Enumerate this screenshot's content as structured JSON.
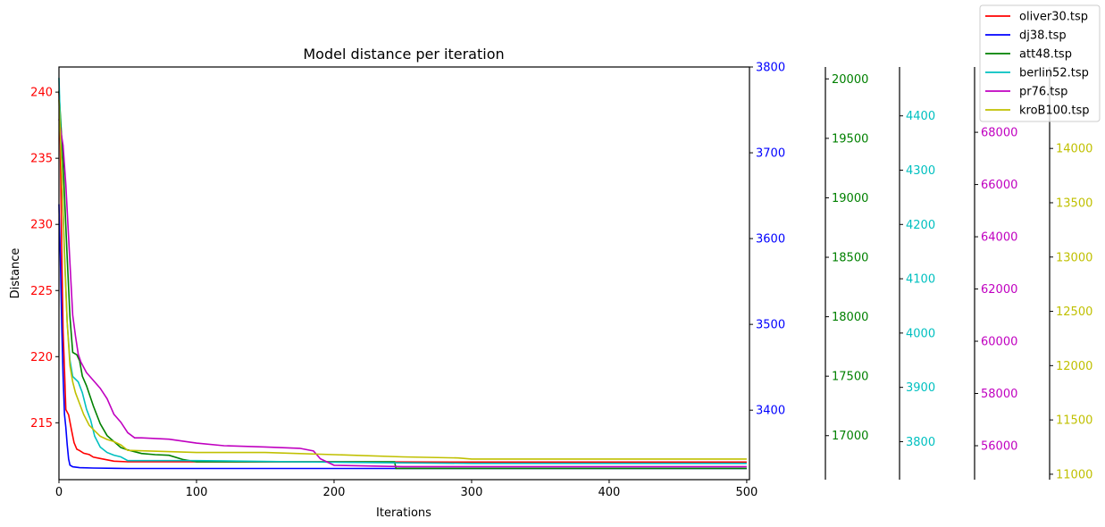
{
  "chart_data": {
    "type": "line",
    "title": "Model distance per iteration",
    "xlabel": "Iterations",
    "ylabel": "Distance",
    "xlim": [
      0,
      502
    ],
    "x_ticks": [
      0,
      100,
      200,
      300,
      400,
      500
    ],
    "legend_position": "top-right",
    "grid": false,
    "series": [
      {
        "name": "oliver30.tsp",
        "color": "#ff0000",
        "axis": {
          "ylim": [
            210.7,
            241.9
          ],
          "ticks": [
            215,
            220,
            225,
            230,
            235,
            240
          ],
          "side": "left"
        },
        "points": [
          [
            0,
            240
          ],
          [
            1,
            236
          ],
          [
            2,
            228
          ],
          [
            3,
            222
          ],
          [
            4,
            219
          ],
          [
            5,
            216
          ],
          [
            7,
            215.6
          ],
          [
            9,
            214.5
          ],
          [
            11,
            213.5
          ],
          [
            13,
            213
          ],
          [
            15,
            212.9
          ],
          [
            18,
            212.7
          ],
          [
            22,
            212.6
          ],
          [
            25,
            212.4
          ],
          [
            30,
            212.3
          ],
          [
            35,
            212.2
          ],
          [
            40,
            212.1
          ],
          [
            50,
            212.05
          ],
          [
            100,
            212.05
          ],
          [
            200,
            212.05
          ],
          [
            300,
            212.03
          ],
          [
            400,
            212.03
          ],
          [
            500,
            212.03
          ]
        ]
      },
      {
        "name": "dj38.tsp",
        "color": "#0000ff",
        "axis": {
          "ylim": [
            3319,
            3800
          ],
          "ticks": [
            3400,
            3500,
            3600,
            3700,
            3800
          ],
          "side": "right"
        },
        "points": [
          [
            0,
            3640
          ],
          [
            1,
            3580
          ],
          [
            2,
            3500
          ],
          [
            3,
            3440
          ],
          [
            4,
            3395
          ],
          [
            5,
            3380
          ],
          [
            6,
            3360
          ],
          [
            7,
            3343
          ],
          [
            8,
            3336
          ],
          [
            10,
            3334
          ],
          [
            15,
            3333
          ],
          [
            25,
            3332.5
          ],
          [
            50,
            3332
          ],
          [
            100,
            3332
          ],
          [
            200,
            3332
          ],
          [
            300,
            3332
          ],
          [
            400,
            3332
          ],
          [
            500,
            3332
          ]
        ]
      },
      {
        "name": "att48.tsp",
        "color": "#008000",
        "axis": {
          "ylim": [
            16630,
            20100
          ],
          "ticks": [
            17000,
            17500,
            18000,
            18500,
            19000,
            19500,
            20000
          ],
          "side": "right"
        },
        "points": [
          [
            0,
            19900
          ],
          [
            3,
            19300
          ],
          [
            6,
            18500
          ],
          [
            8,
            18000
          ],
          [
            10,
            17700
          ],
          [
            13,
            17680
          ],
          [
            15,
            17630
          ],
          [
            17,
            17500
          ],
          [
            20,
            17420
          ],
          [
            25,
            17250
          ],
          [
            30,
            17100
          ],
          [
            35,
            17000
          ],
          [
            40,
            16950
          ],
          [
            45,
            16900
          ],
          [
            50,
            16880
          ],
          [
            60,
            16850
          ],
          [
            70,
            16840
          ],
          [
            80,
            16835
          ],
          [
            90,
            16800
          ],
          [
            100,
            16780
          ],
          [
            150,
            16780
          ],
          [
            200,
            16780
          ],
          [
            244,
            16780
          ],
          [
            245,
            16725
          ],
          [
            300,
            16725
          ],
          [
            400,
            16725
          ],
          [
            500,
            16725
          ]
        ]
      },
      {
        "name": "berlin52.tsp",
        "color": "#00c0c0",
        "axis": {
          "ylim": [
            3730,
            4490
          ],
          "ticks": [
            3800,
            3900,
            4000,
            4100,
            4200,
            4300,
            4400
          ],
          "side": "right"
        },
        "points": [
          [
            0,
            4470
          ],
          [
            2,
            4300
          ],
          [
            4,
            4150
          ],
          [
            6,
            4020
          ],
          [
            8,
            3950
          ],
          [
            10,
            3920
          ],
          [
            14,
            3910
          ],
          [
            17,
            3890
          ],
          [
            20,
            3860
          ],
          [
            23,
            3840
          ],
          [
            26,
            3810
          ],
          [
            30,
            3790
          ],
          [
            35,
            3780
          ],
          [
            40,
            3775
          ],
          [
            45,
            3772
          ],
          [
            50,
            3765
          ],
          [
            100,
            3765
          ],
          [
            200,
            3762
          ],
          [
            300,
            3760
          ],
          [
            400,
            3760
          ],
          [
            500,
            3760
          ]
        ]
      },
      {
        "name": "pr76.tsp",
        "color": "#c000c0",
        "axis": {
          "ylim": [
            54700,
            70500
          ],
          "ticks": [
            56000,
            58000,
            60000,
            62000,
            64000,
            66000,
            68000
          ],
          "side": "right"
        },
        "points": [
          [
            0,
            68500
          ],
          [
            3,
            67500
          ],
          [
            5,
            66000
          ],
          [
            8,
            63000
          ],
          [
            10,
            61000
          ],
          [
            12,
            60200
          ],
          [
            14,
            59500
          ],
          [
            16,
            59200
          ],
          [
            20,
            58800
          ],
          [
            25,
            58500
          ],
          [
            30,
            58200
          ],
          [
            35,
            57800
          ],
          [
            40,
            57200
          ],
          [
            45,
            56900
          ],
          [
            50,
            56500
          ],
          [
            55,
            56300
          ],
          [
            60,
            56300
          ],
          [
            80,
            56250
          ],
          [
            100,
            56100
          ],
          [
            120,
            56000
          ],
          [
            150,
            55950
          ],
          [
            175,
            55900
          ],
          [
            185,
            55800
          ],
          [
            190,
            55500
          ],
          [
            200,
            55250
          ],
          [
            250,
            55200
          ],
          [
            300,
            55200
          ],
          [
            400,
            55200
          ],
          [
            500,
            55200
          ]
        ]
      },
      {
        "name": "kroB100.tsp",
        "color": "#c0c000",
        "axis": {
          "ylim": [
            10950,
            14750
          ],
          "ticks": [
            11000,
            11500,
            12000,
            12500,
            13000,
            13500,
            14000
          ],
          "side": "right"
        },
        "points": [
          [
            0,
            14450
          ],
          [
            2,
            13800
          ],
          [
            4,
            13000
          ],
          [
            6,
            12400
          ],
          [
            8,
            12000
          ],
          [
            10,
            11850
          ],
          [
            12,
            11750
          ],
          [
            15,
            11650
          ],
          [
            18,
            11550
          ],
          [
            22,
            11450
          ],
          [
            26,
            11400
          ],
          [
            30,
            11350
          ],
          [
            35,
            11320
          ],
          [
            40,
            11300
          ],
          [
            45,
            11270
          ],
          [
            50,
            11220
          ],
          [
            100,
            11200
          ],
          [
            150,
            11200
          ],
          [
            200,
            11180
          ],
          [
            250,
            11160
          ],
          [
            290,
            11150
          ],
          [
            300,
            11140
          ],
          [
            400,
            11140
          ],
          [
            500,
            11140
          ]
        ]
      }
    ]
  }
}
